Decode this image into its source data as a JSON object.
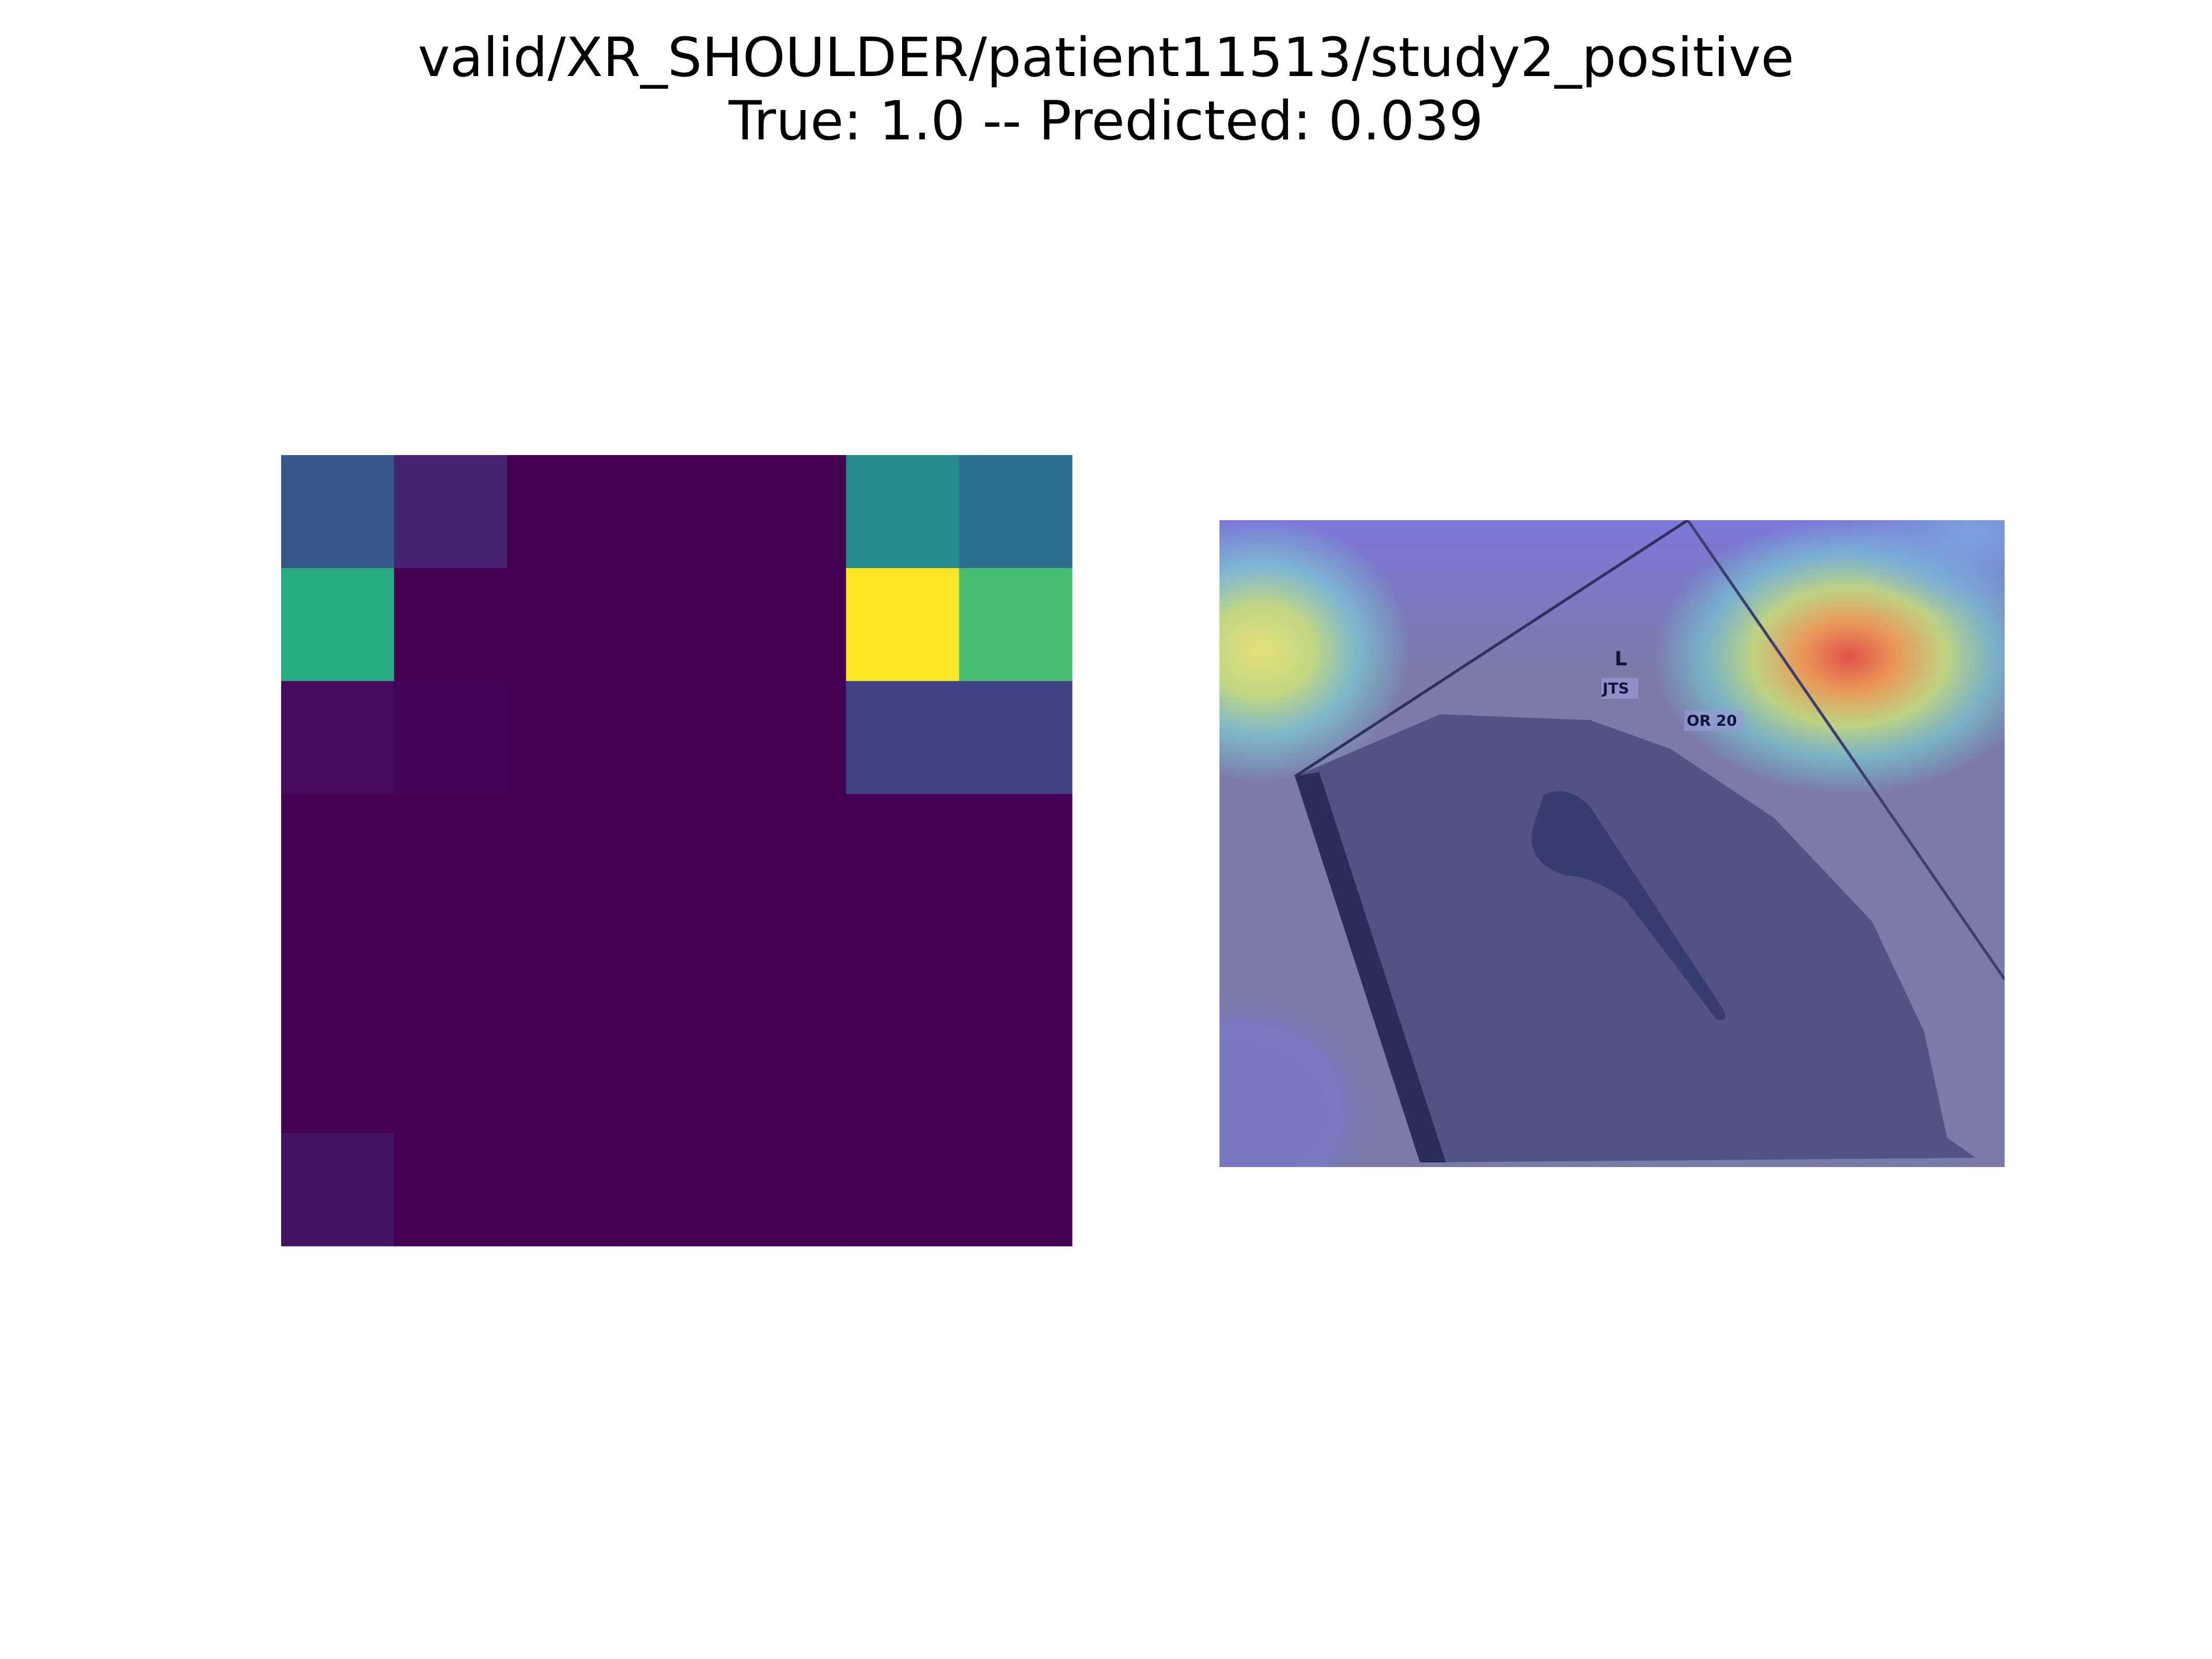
{
  "figure": {
    "title_line_1": "valid/XR_SHOULDER/patient11513/study2_positive",
    "title_line_2": "True: 1.0 -- Predicted: 0.039"
  },
  "chart_data": [
    {
      "type": "heatmap",
      "colormap": "viridis",
      "rows": 7,
      "cols": 7,
      "values": [
        [
          0.28,
          0.1,
          0.0,
          0.0,
          0.0,
          0.48,
          0.37
        ],
        [
          0.63,
          0.0,
          0.0,
          0.0,
          0.0,
          1.0,
          0.7
        ],
        [
          0.03,
          0.01,
          0.0,
          0.0,
          0.0,
          0.2,
          0.2
        ],
        [
          0.0,
          0.0,
          0.0,
          0.0,
          0.0,
          0.0,
          0.0
        ],
        [
          0.0,
          0.0,
          0.0,
          0.0,
          0.0,
          0.0,
          0.0
        ],
        [
          0.0,
          0.0,
          0.0,
          0.0,
          0.0,
          0.0,
          0.0
        ],
        [
          0.05,
          0.0,
          0.0,
          0.0,
          0.0,
          0.0,
          0.0
        ]
      ],
      "axis": "off"
    },
    {
      "type": "image",
      "content": "X-ray overlay heatmap",
      "labels": [
        "L",
        "JTS",
        "OR 20"
      ],
      "axis": "off"
    }
  ]
}
